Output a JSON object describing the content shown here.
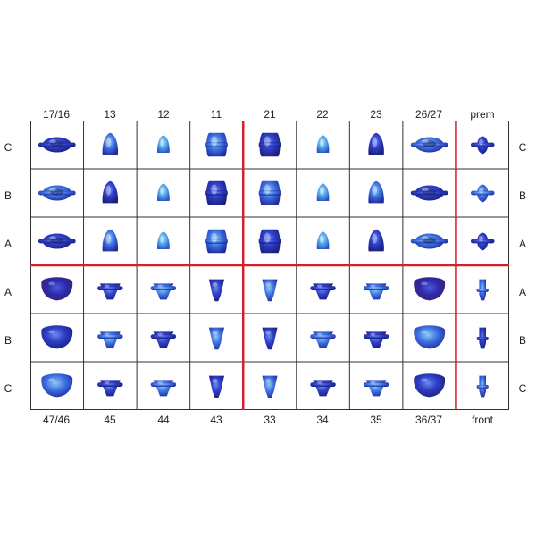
{
  "columns_top": [
    "17/16",
    "13",
    "12",
    "11",
    "21",
    "22",
    "23",
    "26/27",
    "prem"
  ],
  "columns_bottom": [
    "47/46",
    "45",
    "44",
    "43",
    "33",
    "34",
    "35",
    "36/37",
    "front"
  ],
  "rows": [
    "C",
    "B",
    "A",
    "A",
    "B",
    "C"
  ],
  "colors": {
    "grid_line": "#333333",
    "divider": "#d0202a",
    "tooth_dark": "#1a1f8c",
    "tooth_mid": "#3b4fd8",
    "tooth_light": "#5aa8e8",
    "tooth_purple": "#5a1f7a"
  }
}
